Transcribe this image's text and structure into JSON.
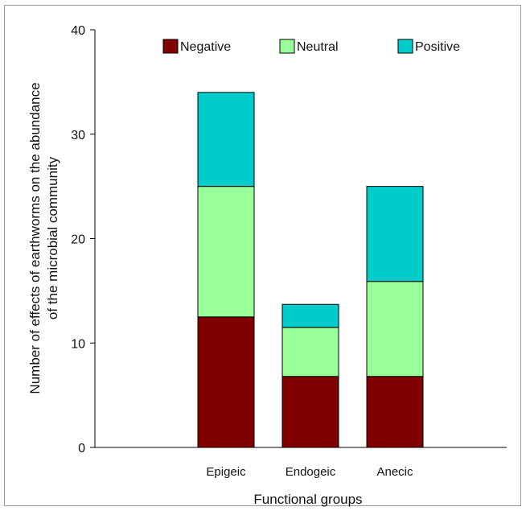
{
  "chart_data": {
    "type": "bar",
    "stacked": true,
    "categories": [
      "Epigeic",
      "Endogeic",
      "Anecic"
    ],
    "series": [
      {
        "name": "Negative",
        "color": "#800000",
        "values": [
          12.5,
          6.8,
          6.8
        ]
      },
      {
        "name": "Neutral",
        "color": "#99ff99",
        "values": [
          12.5,
          4.7,
          9.1
        ]
      },
      {
        "name": "Positive",
        "color": "#00cccc",
        "values": [
          9.0,
          2.2,
          9.1
        ]
      }
    ],
    "xlabel": "Functional groups",
    "ylabel_lines": [
      "Number of effects of earthworms on the abundance",
      "of the microbial community"
    ],
    "ylim": [
      0,
      40
    ],
    "yticks": [
      0,
      10,
      20,
      30,
      40
    ],
    "grid": false,
    "legend_position": "top"
  }
}
